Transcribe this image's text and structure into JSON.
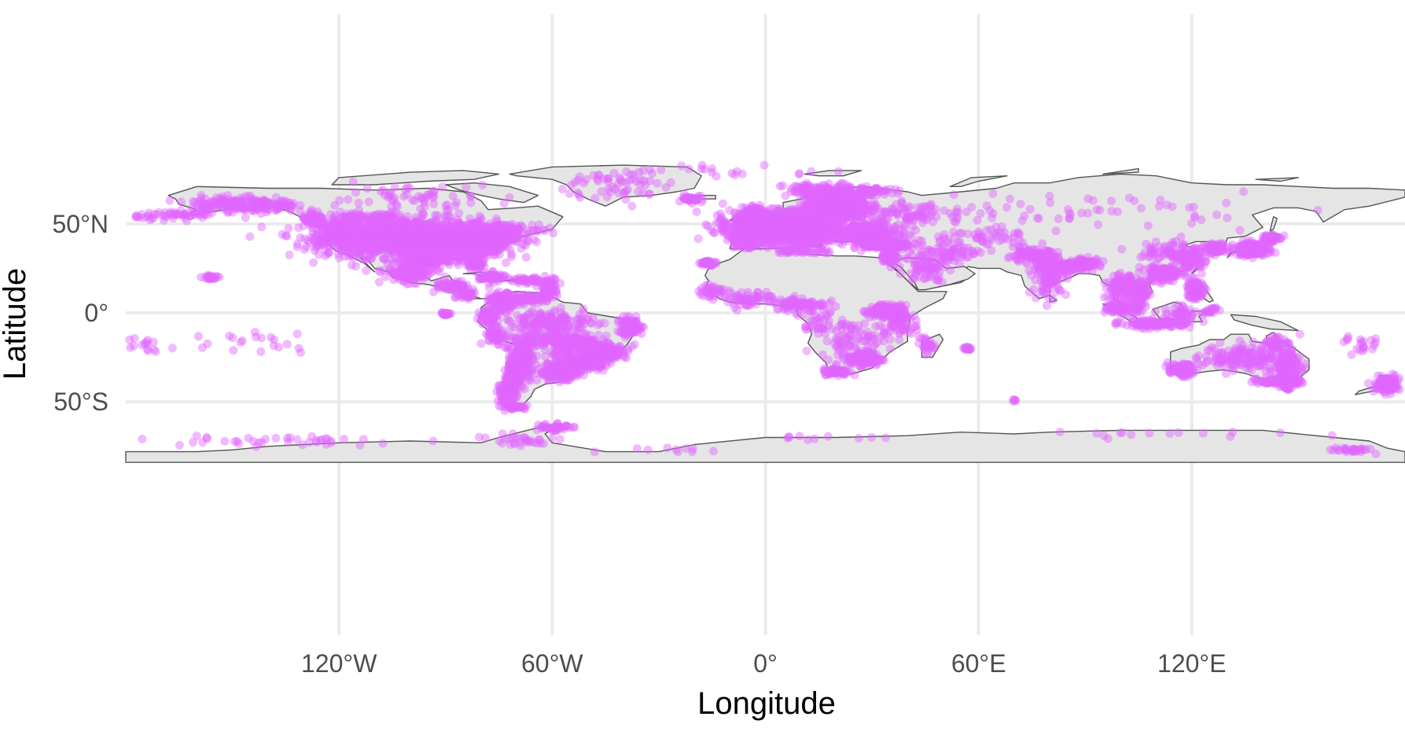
{
  "chart_data": {
    "type": "scatter",
    "title": "",
    "xlabel": "Longitude",
    "ylabel": "Latitude",
    "xlim": [
      -180,
      180
    ],
    "ylim": [
      -90,
      84
    ],
    "x_ticks": [
      {
        "value": -120,
        "label": "120°W"
      },
      {
        "value": -60,
        "label": "60°W"
      },
      {
        "value": 0,
        "label": "0°"
      },
      {
        "value": 60,
        "label": "60°E"
      },
      {
        "value": 120,
        "label": "120°E"
      }
    ],
    "y_ticks": [
      {
        "value": 50,
        "label": "50°N"
      },
      {
        "value": 0,
        "label": "0°"
      },
      {
        "value": -50,
        "label": "50°S"
      }
    ],
    "grid": true,
    "legend": "none",
    "colors": {
      "points": "#e066ff",
      "land": "#e5e5e5",
      "border": "#555555",
      "grid": "#ebebeb"
    },
    "series": [
      {
        "clusters": [
          [
            -100,
            42,
            20,
            9,
            1400
          ],
          [
            -88,
            40,
            6,
            5,
            300
          ],
          [
            -80,
            38,
            5,
            5,
            250
          ],
          [
            -120,
            44,
            5,
            6,
            200
          ],
          [
            -75,
            43,
            5,
            3,
            200
          ],
          [
            -95,
            30,
            6,
            3,
            150
          ],
          [
            -82,
            28,
            2,
            3,
            60
          ],
          [
            -150,
            61,
            10,
            4,
            150
          ],
          [
            -138,
            60,
            5,
            3,
            60
          ],
          [
            -165,
            55,
            10,
            2,
            50
          ],
          [
            -127,
            52,
            3,
            3,
            60
          ],
          [
            -112,
            53,
            10,
            3,
            80
          ],
          [
            -100,
            66,
            25,
            6,
            60
          ],
          [
            -75,
            47,
            8,
            2,
            100
          ],
          [
            -100,
            22,
            6,
            4,
            120
          ],
          [
            -88,
            15,
            4,
            2,
            80
          ],
          [
            -84,
            10,
            2,
            2,
            40
          ],
          [
            -77,
            20,
            3,
            2,
            60
          ],
          [
            -66,
            18,
            6,
            2,
            60
          ],
          [
            -61,
            12,
            2,
            3,
            40
          ],
          [
            -74,
            6,
            3,
            4,
            120
          ],
          [
            -78,
            -2,
            2,
            3,
            80
          ],
          [
            -66,
            8,
            5,
            2,
            60
          ],
          [
            -76,
            -12,
            2,
            4,
            60
          ],
          [
            -68,
            -25,
            2,
            10,
            140
          ],
          [
            -71,
            -35,
            2,
            9,
            200
          ],
          [
            -73,
            -45,
            2,
            5,
            80
          ],
          [
            -70,
            -53,
            3,
            1,
            30
          ],
          [
            -45,
            -22,
            5,
            3,
            200
          ],
          [
            -50,
            -28,
            4,
            3,
            150
          ],
          [
            -58,
            -33,
            5,
            4,
            200
          ],
          [
            -54,
            -18,
            8,
            6,
            200
          ],
          [
            -60,
            -5,
            10,
            5,
            150
          ],
          [
            -38,
            -8,
            3,
            4,
            100
          ],
          [
            -65,
            -15,
            8,
            4,
            60
          ],
          [
            -90,
            -0.5,
            1.5,
            0.5,
            20
          ],
          [
            -156,
            20,
            2,
            1,
            25
          ],
          [
            -140,
            -15,
            12,
            6,
            20
          ],
          [
            -175,
            -17,
            5,
            4,
            15
          ],
          [
            -60,
            -64,
            4,
            2,
            40
          ],
          [
            -140,
            -72,
            30,
            3,
            40
          ],
          [
            -70,
            -72,
            10,
            3,
            30
          ],
          [
            -42,
            72,
            12,
            8,
            60
          ],
          [
            -20,
            64,
            3,
            1.5,
            40
          ],
          [
            -10,
            79,
            20,
            3,
            20
          ],
          [
            5,
            48,
            12,
            7,
            1500
          ],
          [
            20,
            60,
            7,
            6,
            600
          ],
          [
            -3,
            54,
            3,
            4,
            300
          ],
          [
            -6,
            40,
            3,
            3,
            150
          ],
          [
            28,
            45,
            8,
            4,
            300
          ],
          [
            35,
            38,
            6,
            2,
            150
          ],
          [
            15,
            69,
            8,
            3,
            100
          ],
          [
            30,
            68,
            5,
            2,
            50
          ],
          [
            12,
            43,
            4,
            3,
            200
          ],
          [
            -16,
            28,
            2,
            1,
            40
          ],
          [
            10,
            35,
            6,
            1.5,
            50
          ],
          [
            35,
            31,
            2,
            3,
            60
          ],
          [
            45,
            25,
            5,
            6,
            60
          ],
          [
            50,
            33,
            8,
            4,
            60
          ],
          [
            60,
            42,
            15,
            5,
            60
          ],
          [
            75,
            32,
            6,
            3,
            100
          ],
          [
            80,
            20,
            4,
            8,
            100
          ],
          [
            85,
            26,
            6,
            2,
            100
          ],
          [
            90,
            28,
            4,
            2,
            80
          ],
          [
            40,
            55,
            15,
            5,
            100
          ],
          [
            90,
            58,
            40,
            8,
            60
          ],
          [
            100,
            15,
            3,
            5,
            100
          ],
          [
            105,
            12,
            3,
            4,
            100
          ],
          [
            112,
            22,
            5,
            4,
            120
          ],
          [
            120,
            30,
            3,
            4,
            80
          ],
          [
            115,
            35,
            8,
            5,
            80
          ],
          [
            127,
            36,
            2,
            2,
            100
          ],
          [
            137,
            36,
            4,
            3,
            200
          ],
          [
            142,
            42,
            2,
            2,
            60
          ],
          [
            121,
            13,
            2,
            5,
            100
          ],
          [
            101,
            3,
            4,
            3,
            120
          ],
          [
            110,
            -6,
            8,
            2,
            120
          ],
          [
            117,
            0,
            4,
            3,
            40
          ],
          [
            125,
            1,
            2,
            2,
            20
          ],
          [
            147,
            -30,
            3,
            7,
            200
          ],
          [
            117,
            -32,
            3,
            3,
            80
          ],
          [
            135,
            -25,
            10,
            6,
            150
          ],
          [
            145,
            -38,
            5,
            2,
            100
          ],
          [
            147,
            -42,
            1,
            1,
            20
          ],
          [
            144,
            -17,
            3,
            3,
            40
          ],
          [
            175,
            -40,
            3,
            4,
            100
          ],
          [
            168,
            -18,
            4,
            5,
            20
          ],
          [
            37,
            -1,
            3,
            4,
            120
          ],
          [
            32,
            1,
            3,
            3,
            80
          ],
          [
            28,
            -26,
            4,
            3,
            150
          ],
          [
            20,
            -33,
            3,
            1.5,
            80
          ],
          [
            10,
            5,
            6,
            3,
            80
          ],
          [
            -5,
            8,
            8,
            4,
            60
          ],
          [
            25,
            -15,
            8,
            8,
            80
          ],
          [
            38,
            -8,
            4,
            4,
            40
          ],
          [
            15,
            -5,
            6,
            6,
            40
          ],
          [
            45,
            -18,
            2,
            4,
            30
          ],
          [
            -15,
            12,
            3,
            3,
            30
          ],
          [
            165,
            -77,
            5,
            1.5,
            30
          ],
          [
            100,
            -68,
            30,
            1.5,
            15
          ],
          [
            10,
            -70,
            20,
            1,
            10
          ],
          [
            -30,
            -77,
            15,
            2,
            10
          ],
          [
            57,
            -20,
            1.5,
            1,
            15
          ],
          [
            70,
            -49,
            1,
            0.5,
            5
          ]
        ]
      }
    ]
  }
}
